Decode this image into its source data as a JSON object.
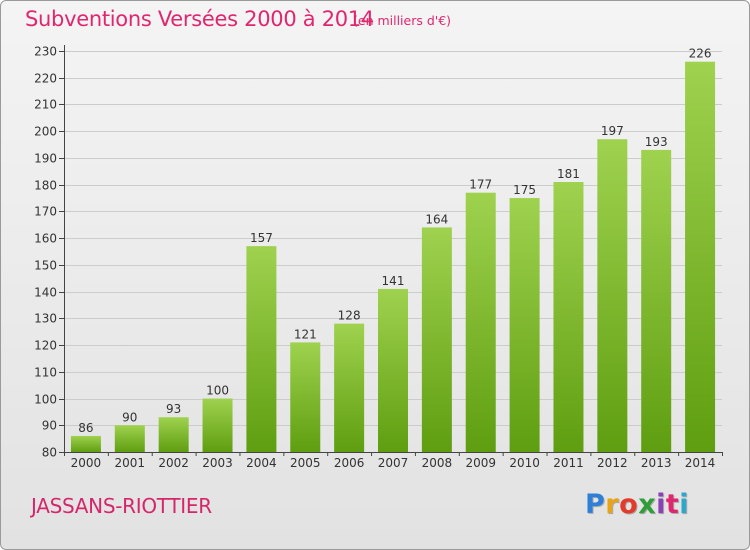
{
  "header": {
    "title": "Subventions Versées 2000 à 2014",
    "subtitle": "(en milliers d'€)"
  },
  "footer": {
    "place": "JASSANS-RIOTTIER",
    "logo_text": "Proxiti"
  },
  "colors": {
    "title": "#e0266f",
    "bar_top": "#9fd24f",
    "bar_bottom": "#5f9e10",
    "axis": "#444444"
  },
  "chart_data": {
    "type": "bar",
    "title": "Subventions Versées 2000 à 2014",
    "subtitle": "(en milliers d'€)",
    "xlabel": "",
    "ylabel": "",
    "categories": [
      "2000",
      "2001",
      "2002",
      "2003",
      "2004",
      "2005",
      "2006",
      "2007",
      "2008",
      "2009",
      "2010",
      "2011",
      "2012",
      "2013",
      "2014"
    ],
    "values": [
      86,
      90,
      93,
      100,
      157,
      121,
      128,
      141,
      164,
      177,
      175,
      181,
      197,
      193,
      226
    ],
    "ylim": [
      80,
      230
    ],
    "yticks": [
      80,
      90,
      100,
      110,
      120,
      130,
      140,
      150,
      160,
      170,
      180,
      190,
      200,
      210,
      220,
      230
    ],
    "grid": true,
    "data_labels": true
  }
}
